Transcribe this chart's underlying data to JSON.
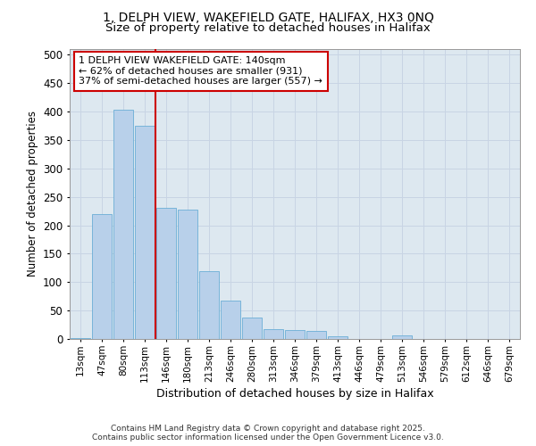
{
  "title_line1": "1, DELPH VIEW, WAKEFIELD GATE, HALIFAX, HX3 0NQ",
  "title_line2": "Size of property relative to detached houses in Halifax",
  "xlabel": "Distribution of detached houses by size in Halifax",
  "ylabel": "Number of detached properties",
  "categories": [
    "13sqm",
    "47sqm",
    "80sqm",
    "113sqm",
    "146sqm",
    "180sqm",
    "213sqm",
    "246sqm",
    "280sqm",
    "313sqm",
    "346sqm",
    "379sqm",
    "413sqm",
    "446sqm",
    "479sqm",
    "513sqm",
    "546sqm",
    "579sqm",
    "612sqm",
    "646sqm",
    "679sqm"
  ],
  "values": [
    2,
    220,
    403,
    375,
    230,
    228,
    120,
    68,
    38,
    18,
    15,
    14,
    5,
    0,
    0,
    6,
    0,
    0,
    0,
    0,
    0
  ],
  "bar_color": "#b8d0ea",
  "bar_edge_color": "#6baed6",
  "grid_color": "#c8d4e4",
  "background_color": "#dde8f0",
  "vline_x": 4,
  "vline_color": "#cc0000",
  "annotation_text": "1 DELPH VIEW WAKEFIELD GATE: 140sqm\n← 62% of detached houses are smaller (931)\n37% of semi-detached houses are larger (557) →",
  "footer": "Contains HM Land Registry data © Crown copyright and database right 2025.\nContains public sector information licensed under the Open Government Licence v3.0.",
  "ylim": [
    0,
    510
  ],
  "yticks": [
    0,
    50,
    100,
    150,
    200,
    250,
    300,
    350,
    400,
    450,
    500
  ]
}
